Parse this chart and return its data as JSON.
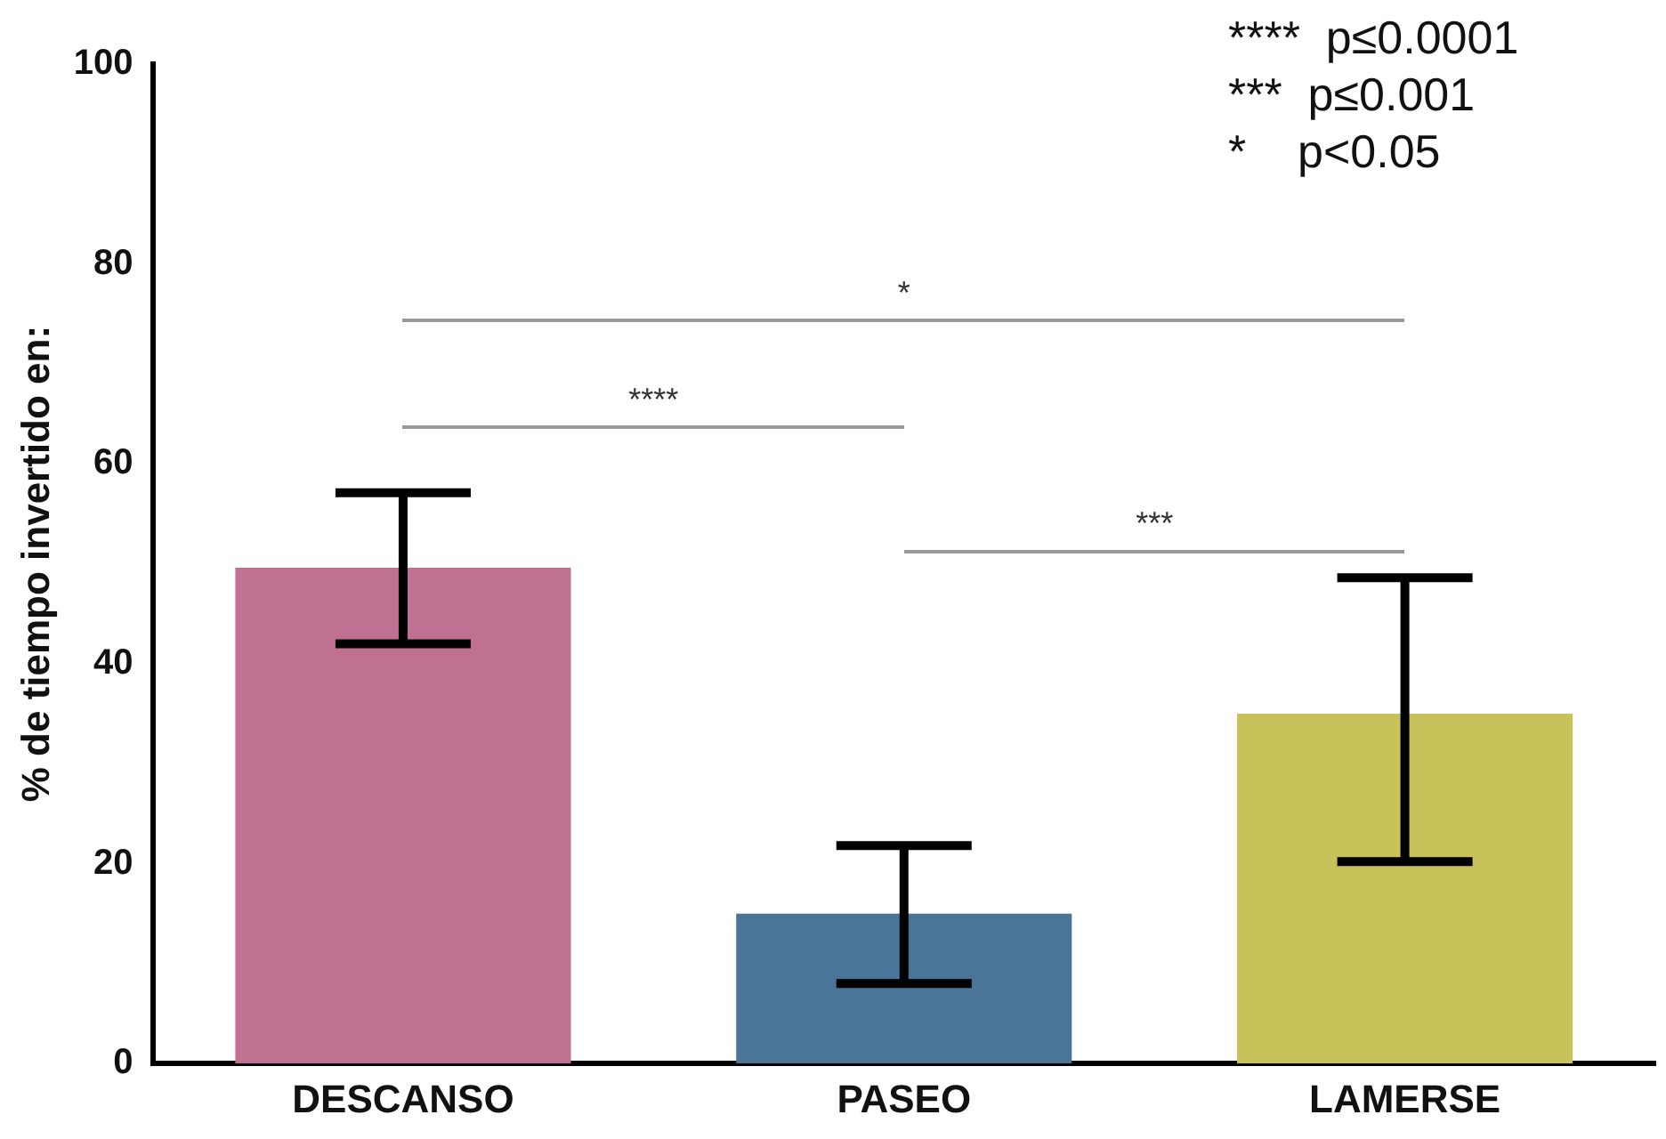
{
  "chart_data": {
    "type": "bar",
    "ylabel": "% de tiempo invertido en:",
    "categories": [
      "DESCANSO",
      "PASEO",
      "LAMERSE"
    ],
    "values": [
      49.6,
      15,
      35
    ],
    "colors": [
      "#c07090",
      "#4a7498",
      "#c8c25a"
    ],
    "errors": [
      [
        42,
        57.1
      ],
      [
        8,
        21.8
      ],
      [
        20.2,
        48.6
      ]
    ],
    "ylim": [
      0,
      100
    ],
    "yticks": [
      0,
      20,
      40,
      60,
      80,
      100
    ],
    "grid": false,
    "legend": false,
    "annotations": [
      "*",
      "****",
      "***",
      "****  p≤0.0001",
      "***  p≤0.001",
      "*    p<0.05"
    ]
  }
}
